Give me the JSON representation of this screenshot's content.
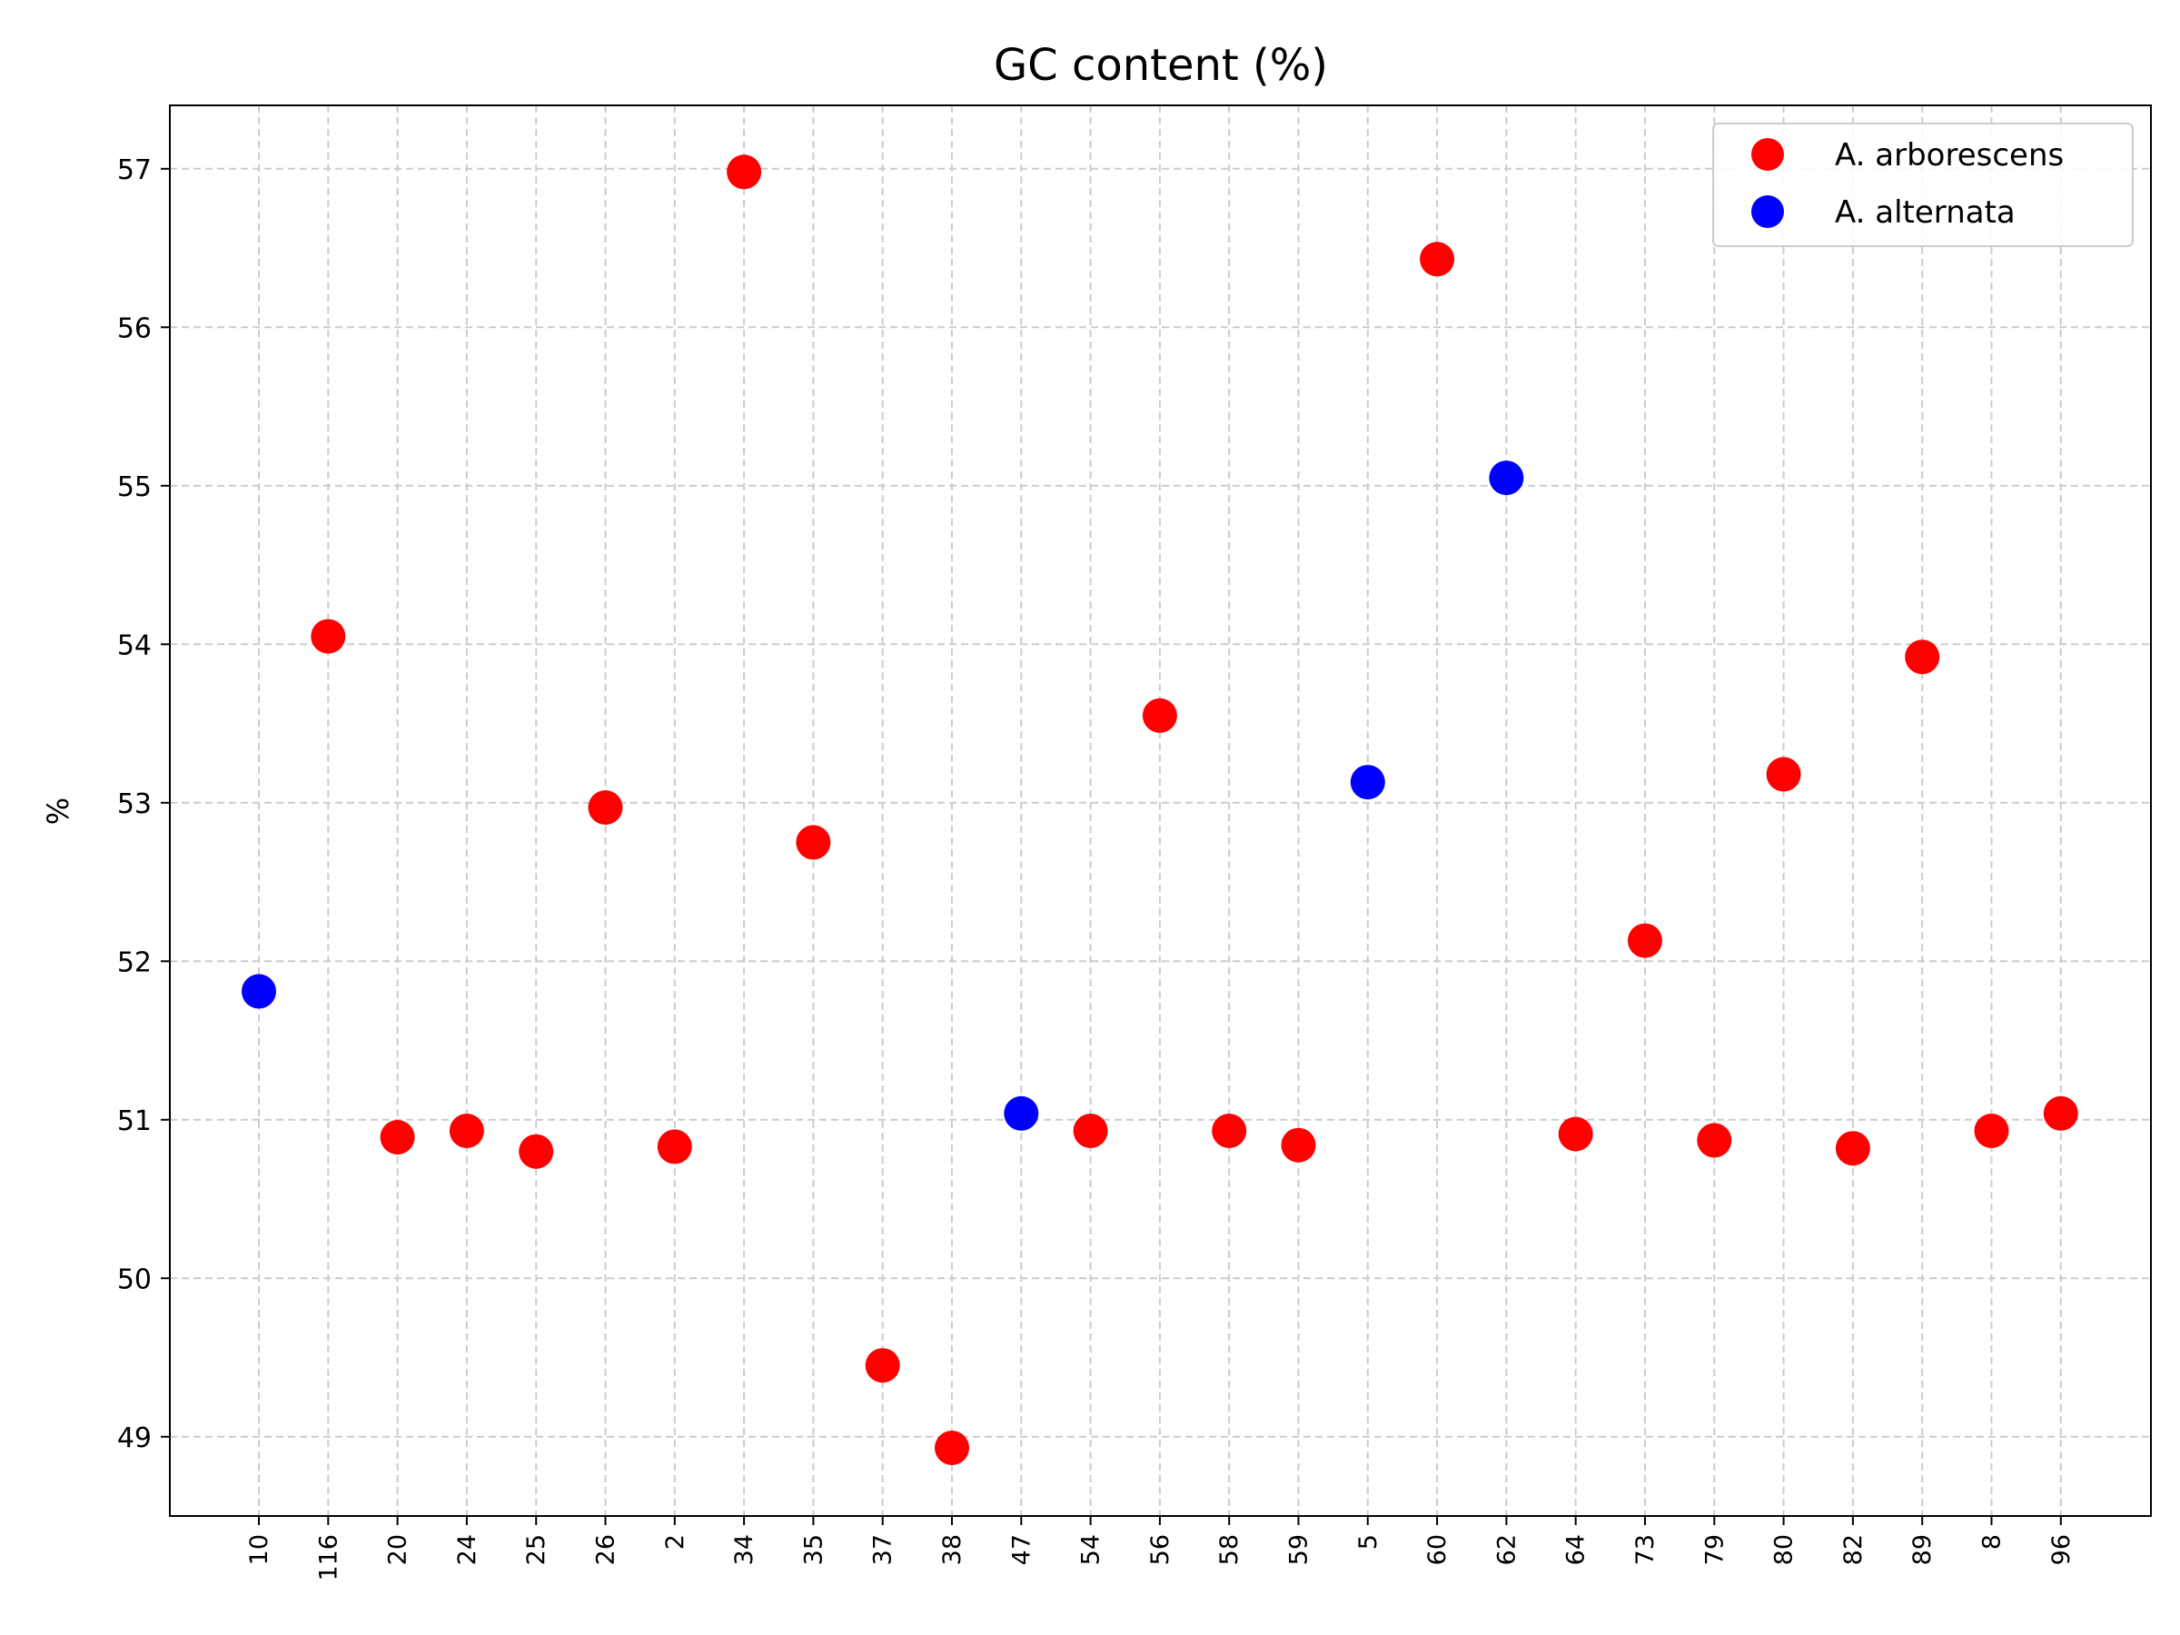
{
  "chart_data": {
    "type": "scatter",
    "title": "GC content (%)",
    "xlabel": "",
    "ylabel": "%",
    "ylim": [
      48.5,
      57.4
    ],
    "yticks": [
      49,
      50,
      51,
      52,
      53,
      54,
      55,
      56,
      57
    ],
    "grid": true,
    "legend_position": "top-right",
    "categories": [
      "10",
      "116",
      "20",
      "24",
      "25",
      "26",
      "2",
      "34",
      "35",
      "37",
      "38",
      "47",
      "54",
      "56",
      "58",
      "59",
      "5",
      "60",
      "62",
      "64",
      "73",
      "79",
      "80",
      "82",
      "89",
      "8",
      "96"
    ],
    "series": [
      {
        "name": "A. arborescens",
        "color": "#ff0000",
        "points": [
          {
            "x": "116",
            "y": 54.05
          },
          {
            "x": "20",
            "y": 50.89
          },
          {
            "x": "24",
            "y": 50.93
          },
          {
            "x": "25",
            "y": 50.8
          },
          {
            "x": "26",
            "y": 52.97
          },
          {
            "x": "2",
            "y": 50.83
          },
          {
            "x": "34",
            "y": 56.98
          },
          {
            "x": "35",
            "y": 52.75
          },
          {
            "x": "37",
            "y": 49.45
          },
          {
            "x": "38",
            "y": 48.93
          },
          {
            "x": "54",
            "y": 50.93
          },
          {
            "x": "56",
            "y": 53.55
          },
          {
            "x": "58",
            "y": 50.93
          },
          {
            "x": "59",
            "y": 50.84
          },
          {
            "x": "60",
            "y": 56.43
          },
          {
            "x": "64",
            "y": 50.91
          },
          {
            "x": "73",
            "y": 52.13
          },
          {
            "x": "79",
            "y": 50.87
          },
          {
            "x": "80",
            "y": 53.18
          },
          {
            "x": "82",
            "y": 50.82
          },
          {
            "x": "89",
            "y": 53.92
          },
          {
            "x": "8",
            "y": 50.93
          },
          {
            "x": "96",
            "y": 51.04
          }
        ]
      },
      {
        "name": "A. alternata",
        "color": "#0000ff",
        "points": [
          {
            "x": "10",
            "y": 51.81
          },
          {
            "x": "47",
            "y": 51.04
          },
          {
            "x": "5",
            "y": 53.13
          },
          {
            "x": "62",
            "y": 55.05
          }
        ]
      }
    ]
  }
}
